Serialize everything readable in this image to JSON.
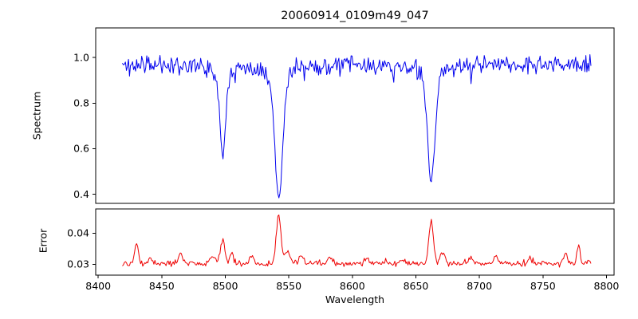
{
  "chart_data": {
    "type": "line",
    "title": "20060914_0109m49_047",
    "xlabel": "Wavelength",
    "xlim": [
      8398,
      8806
    ],
    "x_data_range": [
      8419,
      8788
    ],
    "xticks": [
      8400,
      8450,
      8500,
      8550,
      8600,
      8650,
      8700,
      8750,
      8800
    ],
    "sample_step": 0.8,
    "grid": false,
    "legend": "none",
    "background_color": "#ffffff",
    "axis_color": "#000000",
    "panels": [
      {
        "name": "spectrum",
        "ylabel": "Spectrum",
        "color": "#0000ee",
        "ylim": [
          0.36,
          1.13
        ],
        "yticks": [
          0.4,
          0.6,
          0.8,
          1.0
        ],
        "ytick_decimals": 1,
        "baseline": 0.97,
        "noise_amplitude": 0.04,
        "noise_seed": 11,
        "absorption_lines": [
          {
            "center": 8498.0,
            "depth": 0.41,
            "sigma": 2.2,
            "min_value": 0.575
          },
          {
            "center": 8542.1,
            "depth": 0.6,
            "sigma": 3.0,
            "min_value": 0.385
          },
          {
            "center": 8662.1,
            "depth": 0.53,
            "sigma": 2.8,
            "min_value": 0.46
          }
        ]
      },
      {
        "name": "error",
        "ylabel": "Error",
        "color": "#ee0000",
        "ylim": [
          0.0265,
          0.0478
        ],
        "yticks": [
          0.03,
          0.04
        ],
        "ytick_decimals": 2,
        "baseline": 0.0302,
        "noise_amplitude": 0.0009,
        "noise_seed": 29,
        "emission_peaks": [
          {
            "center": 8430,
            "height": 0.0065,
            "sigma": 1.5
          },
          {
            "center": 8441,
            "height": 0.002,
            "sigma": 1.2
          },
          {
            "center": 8465,
            "height": 0.0038,
            "sigma": 1.5
          },
          {
            "center": 8490,
            "height": 0.0022,
            "sigma": 1.5
          },
          {
            "center": 8498,
            "height": 0.0075,
            "sigma": 1.8
          },
          {
            "center": 8505,
            "height": 0.003,
            "sigma": 1.5
          },
          {
            "center": 8521,
            "height": 0.0025,
            "sigma": 1.5
          },
          {
            "center": 8542,
            "height": 0.0155,
            "sigma": 1.8
          },
          {
            "center": 8549,
            "height": 0.004,
            "sigma": 2.0
          },
          {
            "center": 8560,
            "height": 0.0028,
            "sigma": 1.5
          },
          {
            "center": 8582,
            "height": 0.0018,
            "sigma": 1.5
          },
          {
            "center": 8611,
            "height": 0.0015,
            "sigma": 1.5
          },
          {
            "center": 8640,
            "height": 0.0015,
            "sigma": 1.5
          },
          {
            "center": 8662,
            "height": 0.0135,
            "sigma": 1.8
          },
          {
            "center": 8671,
            "height": 0.0035,
            "sigma": 2.0
          },
          {
            "center": 8693,
            "height": 0.0022,
            "sigma": 1.5
          },
          {
            "center": 8713,
            "height": 0.0022,
            "sigma": 1.5
          },
          {
            "center": 8740,
            "height": 0.0018,
            "sigma": 1.5
          },
          {
            "center": 8768,
            "height": 0.0035,
            "sigma": 1.5
          },
          {
            "center": 8778,
            "height": 0.006,
            "sigma": 1.2
          }
        ]
      }
    ]
  }
}
